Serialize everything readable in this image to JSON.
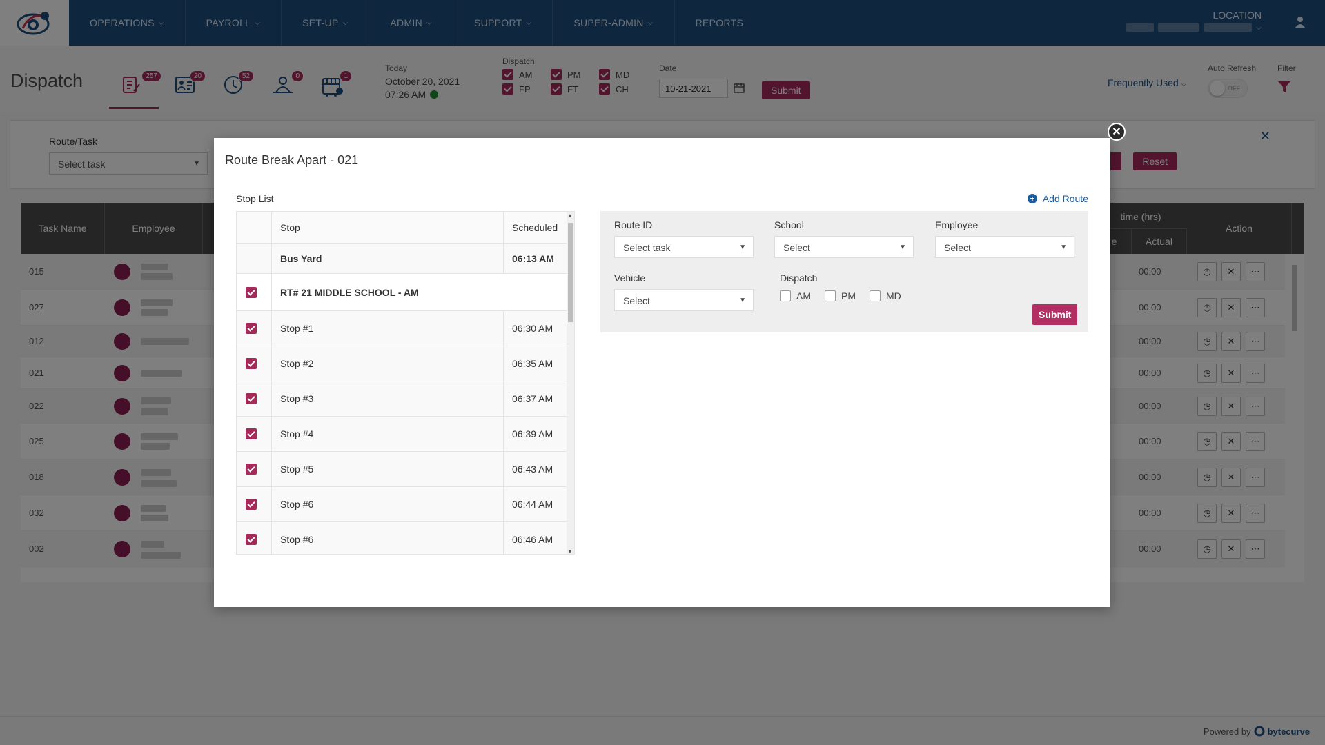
{
  "nav": {
    "items": [
      {
        "label": "OPERATIONS"
      },
      {
        "label": "PAYROLL"
      },
      {
        "label": "SET-UP"
      },
      {
        "label": "ADMIN"
      },
      {
        "label": "SUPPORT"
      },
      {
        "label": "SUPER-ADMIN"
      },
      {
        "label": "REPORTS"
      }
    ],
    "location_label": "LOCATION"
  },
  "header": {
    "title": "Dispatch",
    "tab_badges": [
      "257",
      "20",
      "52",
      "0",
      "1"
    ],
    "today_label": "Today",
    "today_date": "October 20, 2021",
    "today_time": "07:26 AM",
    "dispatch_label": "Dispatch",
    "dispatch_options": [
      {
        "label": "AM",
        "checked": true
      },
      {
        "label": "PM",
        "checked": true
      },
      {
        "label": "MD",
        "checked": true
      },
      {
        "label": "FP",
        "checked": true
      },
      {
        "label": "FT",
        "checked": true
      },
      {
        "label": "CH",
        "checked": true
      }
    ],
    "date_label": "Date",
    "date_value": "10-21-2021",
    "submit_label": "Submit",
    "frequently_used": "Frequently Used",
    "auto_refresh_label": "Auto Refresh",
    "auto_refresh_state": "OFF",
    "filter_label": "Filter"
  },
  "filter_panel": {
    "route_task_label": "Route/Task",
    "route_task_placeholder": "Select task",
    "reset_label": "Reset"
  },
  "bg_table": {
    "headers": [
      "Task Name",
      "Employee",
      "time (hrs)",
      "e",
      "Actual",
      "Action"
    ],
    "rows": [
      {
        "task": "015",
        "actual": "00:00"
      },
      {
        "task": "027",
        "actual": "00:00"
      },
      {
        "task": "012",
        "actual": "00:00"
      },
      {
        "task": "021",
        "actual": "00:00"
      },
      {
        "task": "022",
        "actual": "00:00"
      },
      {
        "task": "025",
        "actual": "00:00"
      },
      {
        "task": "018",
        "actual": "00:00"
      },
      {
        "task": "032",
        "actual": "00:00"
      },
      {
        "task": "002",
        "actual": "00:00"
      }
    ]
  },
  "modal": {
    "title": "Route Break Apart - 021",
    "stop_list_label": "Stop List",
    "add_route_label": "Add Route",
    "stop_header": "Stop",
    "scheduled_header": "Scheduled",
    "bus_yard": {
      "name": "Bus Yard",
      "time": "06:13 AM"
    },
    "school": {
      "name": "RT# 21 MIDDLE SCHOOL - AM"
    },
    "stops": [
      {
        "name": "Stop #1",
        "time": "06:30 AM"
      },
      {
        "name": "Stop #2",
        "time": "06:35 AM"
      },
      {
        "name": "Stop #3",
        "time": "06:37 AM"
      },
      {
        "name": "Stop #4",
        "time": "06:39 AM"
      },
      {
        "name": "Stop #5",
        "time": "06:43 AM"
      },
      {
        "name": "Stop #6",
        "time": "06:44 AM"
      },
      {
        "name": "Stop #6",
        "time": "06:46 AM"
      }
    ],
    "form": {
      "route_id_label": "Route ID",
      "route_id_placeholder": "Select task",
      "school_label": "School",
      "school_placeholder": "Select",
      "employee_label": "Employee",
      "employee_placeholder": "Select",
      "vehicle_label": "Vehicle",
      "vehicle_placeholder": "Select",
      "dispatch_label": "Dispatch",
      "dispatch_options": [
        "AM",
        "PM",
        "MD"
      ],
      "submit_label": "Submit"
    }
  },
  "footer": {
    "powered_by": "Powered by",
    "brand": "bytecurve"
  },
  "colors": {
    "nav_bg": "#1d4e7e",
    "accent": "#a52a5a",
    "link": "#1d5c9c"
  }
}
